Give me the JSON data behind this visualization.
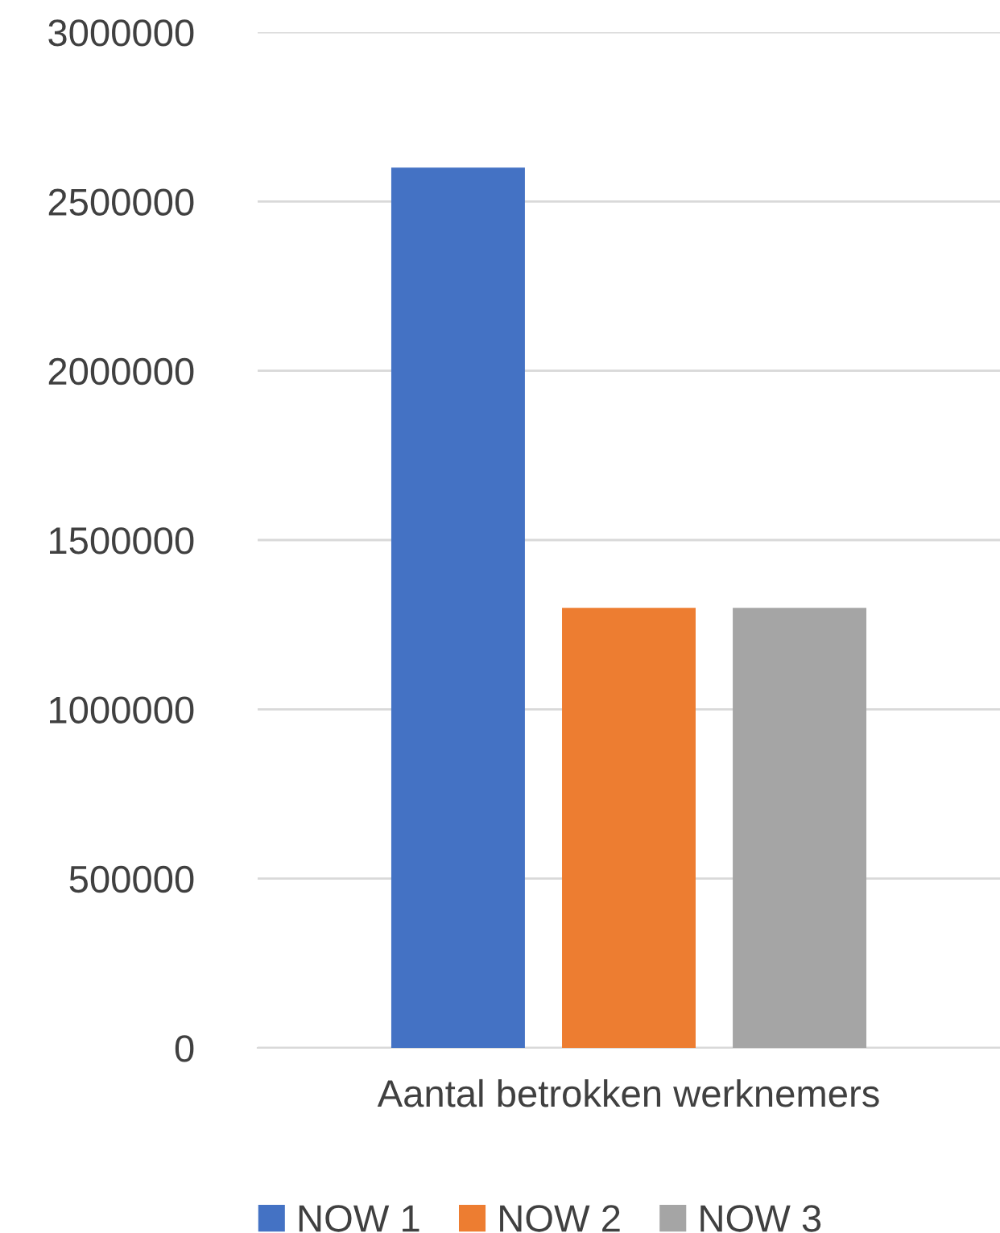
{
  "chart_data": {
    "type": "bar",
    "categories": [
      "Aantal betrokken werknemers"
    ],
    "series": [
      {
        "name": "NOW 1",
        "color": "#4472c4",
        "values": [
          2600000
        ]
      },
      {
        "name": "NOW 2",
        "color": "#ed7d31",
        "values": [
          1300000
        ]
      },
      {
        "name": "NOW 3",
        "color": "#a5a5a5",
        "values": [
          1300000
        ]
      }
    ],
    "ylim": [
      0,
      3000000
    ],
    "yticks": [
      0,
      500000,
      1000000,
      1500000,
      2000000,
      2500000,
      3000000
    ],
    "grid": "y",
    "legend": "bottom"
  }
}
